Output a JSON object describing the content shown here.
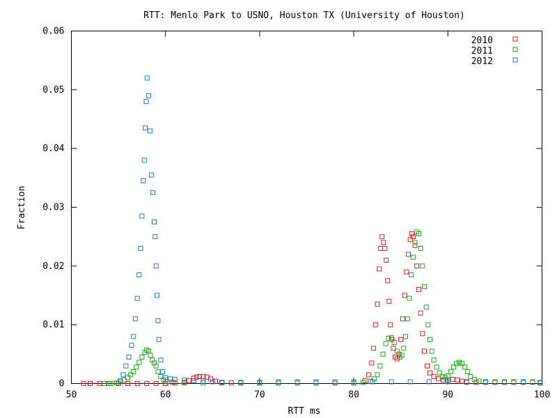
{
  "chart_data": {
    "type": "scatter",
    "title": "RTT: Menlo Park to USNO, Houston TX (University of Houston)",
    "xlabel": "RTT ms",
    "ylabel": "Fraction",
    "xlim": [
      50,
      100
    ],
    "ylim": [
      0,
      0.06
    ],
    "x_ticks": [
      "50",
      "60",
      "70",
      "80",
      "90",
      "100"
    ],
    "y_ticks": [
      "0",
      "0.01",
      "0.02",
      "0.03",
      "0.04",
      "0.05",
      "0.06"
    ],
    "legend_position": "top-right",
    "grid": false,
    "series": [
      {
        "name": "2010",
        "color": "#e41a1c",
        "points": [
          [
            51.3,
            0
          ],
          [
            52.0,
            0
          ],
          [
            53.0,
            0
          ],
          [
            54.0,
            0
          ],
          [
            55.0,
            0
          ],
          [
            56.0,
            0
          ],
          [
            57.0,
            0
          ],
          [
            58.0,
            0
          ],
          [
            59.0,
            0
          ],
          [
            60.0,
            0
          ],
          [
            61.0,
            0.0001
          ],
          [
            62.0,
            0.0002
          ],
          [
            62.5,
            0.0005
          ],
          [
            63.0,
            0.0009
          ],
          [
            63.3,
            0.0011
          ],
          [
            63.6,
            0.0012
          ],
          [
            64.0,
            0.0012
          ],
          [
            64.4,
            0.0011
          ],
          [
            64.8,
            0.0008
          ],
          [
            65.3,
            0.0004
          ],
          [
            66.0,
            0.0002
          ],
          [
            67.0,
            0.0001
          ],
          [
            68.0,
            0.0001
          ],
          [
            70.0,
            0.0001
          ],
          [
            72.0,
            0.0001
          ],
          [
            74.0,
            0.0001
          ],
          [
            76.0,
            0.0001
          ],
          [
            78.0,
            0.0001
          ],
          [
            80.0,
            0.0001
          ],
          [
            81.2,
            0.0005
          ],
          [
            81.6,
            0.0015
          ],
          [
            81.9,
            0.0035
          ],
          [
            82.1,
            0.006
          ],
          [
            82.3,
            0.01
          ],
          [
            82.5,
            0.0135
          ],
          [
            82.7,
            0.0195
          ],
          [
            82.85,
            0.023
          ],
          [
            83.0,
            0.025
          ],
          [
            83.15,
            0.024
          ],
          [
            83.3,
            0.023
          ],
          [
            83.45,
            0.021
          ],
          [
            83.6,
            0.0175
          ],
          [
            83.75,
            0.014
          ],
          [
            83.9,
            0.01
          ],
          [
            84.05,
            0.0075
          ],
          [
            84.2,
            0.006
          ],
          [
            84.4,
            0.0045
          ],
          [
            84.6,
            0.0042
          ],
          [
            84.8,
            0.005
          ],
          [
            85.0,
            0.0075
          ],
          [
            85.2,
            0.011
          ],
          [
            85.4,
            0.015
          ],
          [
            85.6,
            0.019
          ],
          [
            85.8,
            0.022
          ],
          [
            86.0,
            0.0245
          ],
          [
            86.15,
            0.0255
          ],
          [
            86.3,
            0.025
          ],
          [
            86.5,
            0.0235
          ],
          [
            86.7,
            0.02
          ],
          [
            86.9,
            0.016
          ],
          [
            87.1,
            0.012
          ],
          [
            87.3,
            0.0085
          ],
          [
            87.5,
            0.0055
          ],
          [
            87.8,
            0.003
          ],
          [
            88.1,
            0.0018
          ],
          [
            88.5,
            0.0012
          ],
          [
            89.0,
            0.0008
          ],
          [
            89.5,
            0.0006
          ],
          [
            90.0,
            0.0006
          ],
          [
            90.5,
            0.0007
          ],
          [
            91.0,
            0.0006
          ],
          [
            91.5,
            0.0004
          ],
          [
            92.0,
            0.0003
          ],
          [
            93.0,
            0.0002
          ],
          [
            94.0,
            0.0002
          ],
          [
            95.0,
            0.0002
          ],
          [
            96.0,
            0.0002
          ],
          [
            97.0,
            0.0002
          ],
          [
            98.0,
            0.0002
          ],
          [
            99.0,
            0.0002
          ],
          [
            99.8,
            0.0001
          ]
        ]
      },
      {
        "name": "2011",
        "color": "#1ea51e",
        "points": [
          [
            53.5,
            0
          ],
          [
            54.2,
            0
          ],
          [
            54.8,
            0.0001
          ],
          [
            55.2,
            0.0003
          ],
          [
            55.6,
            0.0006
          ],
          [
            56.0,
            0.001
          ],
          [
            56.3,
            0.0015
          ],
          [
            56.6,
            0.002
          ],
          [
            56.9,
            0.0028
          ],
          [
            57.2,
            0.0036
          ],
          [
            57.5,
            0.0045
          ],
          [
            57.8,
            0.0053
          ],
          [
            58.0,
            0.0057
          ],
          [
            58.2,
            0.0055
          ],
          [
            58.4,
            0.0048
          ],
          [
            58.6,
            0.004
          ],
          [
            58.8,
            0.0035
          ],
          [
            59.0,
            0.003
          ],
          [
            59.2,
            0.002
          ],
          [
            59.5,
            0.0012
          ],
          [
            59.8,
            0.0006
          ],
          [
            60.2,
            0.0003
          ],
          [
            60.8,
            0.0002
          ],
          [
            62.0,
            0.0001
          ],
          [
            64.0,
            0.0001
          ],
          [
            66.0,
            0.0001
          ],
          [
            68.0,
            0.0001
          ],
          [
            70.0,
            0.0001
          ],
          [
            72.0,
            0.0001
          ],
          [
            74.0,
            0.0001
          ],
          [
            76.0,
            0.0001
          ],
          [
            78.0,
            0.0001
          ],
          [
            80.0,
            0.0001
          ],
          [
            81.0,
            0.0002
          ],
          [
            81.8,
            0.0004
          ],
          [
            82.2,
            0.0008
          ],
          [
            82.5,
            0.0015
          ],
          [
            82.8,
            0.003
          ],
          [
            83.1,
            0.005
          ],
          [
            83.4,
            0.0068
          ],
          [
            83.7,
            0.0077
          ],
          [
            84.0,
            0.0078
          ],
          [
            84.3,
            0.007
          ],
          [
            84.6,
            0.0055
          ],
          [
            84.9,
            0.0045
          ],
          [
            85.1,
            0.0048
          ],
          [
            85.3,
            0.006
          ],
          [
            85.5,
            0.008
          ],
          [
            85.7,
            0.011
          ],
          [
            85.9,
            0.0145
          ],
          [
            86.1,
            0.0185
          ],
          [
            86.3,
            0.0215
          ],
          [
            86.5,
            0.024
          ],
          [
            86.7,
            0.0258
          ],
          [
            86.9,
            0.0255
          ],
          [
            87.1,
            0.023
          ],
          [
            87.3,
            0.02
          ],
          [
            87.5,
            0.0165
          ],
          [
            87.7,
            0.013
          ],
          [
            87.9,
            0.01
          ],
          [
            88.1,
            0.0075
          ],
          [
            88.3,
            0.0055
          ],
          [
            88.5,
            0.004
          ],
          [
            88.8,
            0.0028
          ],
          [
            89.1,
            0.0018
          ],
          [
            89.4,
            0.0012
          ],
          [
            89.7,
            0.001
          ],
          [
            90.0,
            0.0013
          ],
          [
            90.3,
            0.002
          ],
          [
            90.6,
            0.0028
          ],
          [
            90.9,
            0.0034
          ],
          [
            91.2,
            0.0036
          ],
          [
            91.5,
            0.0034
          ],
          [
            91.8,
            0.0028
          ],
          [
            92.1,
            0.002
          ],
          [
            92.4,
            0.0012
          ],
          [
            92.8,
            0.0007
          ],
          [
            93.3,
            0.0004
          ],
          [
            94.0,
            0.0003
          ],
          [
            95.0,
            0.0003
          ],
          [
            96.0,
            0.0003
          ],
          [
            97.0,
            0.0003
          ],
          [
            98.0,
            0.0003
          ],
          [
            99.0,
            0.0003
          ],
          [
            99.8,
            0.0002
          ]
        ]
      },
      {
        "name": "2012",
        "color": "#1f78d2",
        "points": [
          [
            55.2,
            0.0005
          ],
          [
            55.5,
            0.0015
          ],
          [
            55.8,
            0.003
          ],
          [
            56.1,
            0.0045
          ],
          [
            56.4,
            0.0065
          ],
          [
            56.6,
            0.008
          ],
          [
            56.8,
            0.011
          ],
          [
            57.0,
            0.0145
          ],
          [
            57.2,
            0.0185
          ],
          [
            57.35,
            0.023
          ],
          [
            57.5,
            0.0285
          ],
          [
            57.65,
            0.0345
          ],
          [
            57.75,
            0.038
          ],
          [
            57.85,
            0.0435
          ],
          [
            57.95,
            0.048
          ],
          [
            58.05,
            0.052
          ],
          [
            58.2,
            0.049
          ],
          [
            58.35,
            0.043
          ],
          [
            58.5,
            0.0355
          ],
          [
            58.65,
            0.0325
          ],
          [
            58.8,
            0.0275
          ],
          [
            58.9,
            0.025
          ],
          [
            59.0,
            0.02
          ],
          [
            59.1,
            0.015
          ],
          [
            59.2,
            0.0107
          ],
          [
            59.3,
            0.0075
          ],
          [
            59.5,
            0.004
          ],
          [
            59.7,
            0.002
          ],
          [
            60.0,
            0.001
          ],
          [
            60.5,
            0.0008
          ],
          [
            61.0,
            0.0007
          ],
          [
            62.0,
            0.0006
          ],
          [
            63.0,
            0.0005
          ],
          [
            64.0,
            0.0004
          ],
          [
            65.0,
            0.0003
          ],
          [
            66.0,
            0.0002
          ],
          [
            68.0,
            0.0002
          ],
          [
            70.0,
            0.0002
          ],
          [
            72.0,
            0.0003
          ],
          [
            74.0,
            0.0003
          ],
          [
            76.0,
            0.0003
          ],
          [
            78.0,
            0.0003
          ],
          [
            80.0,
            0.0003
          ],
          [
            82.0,
            0.0003
          ],
          [
            84.0,
            0.0003
          ],
          [
            86.0,
            0.0003
          ],
          [
            88.0,
            0.0003
          ],
          [
            90.0,
            0.0003
          ],
          [
            92.0,
            0.0002
          ],
          [
            94.0,
            0.0002
          ],
          [
            96.0,
            0.0002
          ],
          [
            98.0,
            0.0002
          ],
          [
            99.8,
            0.0001
          ]
        ]
      }
    ]
  }
}
